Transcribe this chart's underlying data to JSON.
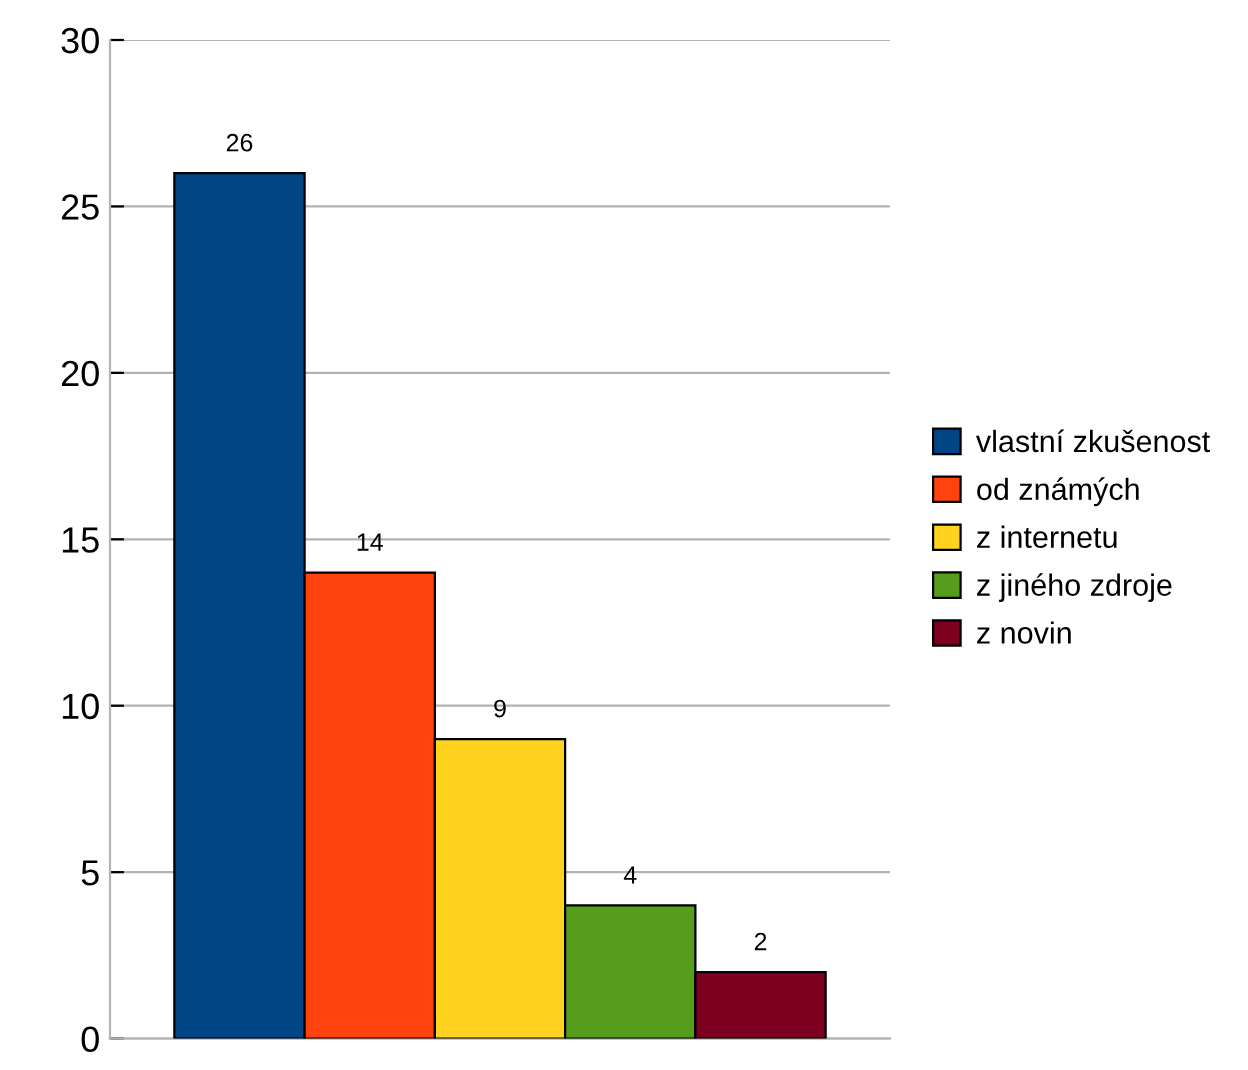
{
  "chart_data": {
    "type": "bar",
    "categories": [
      null
    ],
    "series": [
      {
        "name": "vlastní zkušenost",
        "color": "#004586",
        "values": [
          26
        ]
      },
      {
        "name": "od známých",
        "color": "#ff420e",
        "values": [
          14
        ]
      },
      {
        "name": "z internetu",
        "color": "#ffd320",
        "values": [
          9
        ]
      },
      {
        "name": "z jiného zdroje",
        "color": "#579d1c",
        "values": [
          4
        ]
      },
      {
        "name": "z novin",
        "color": "#7e0021",
        "values": [
          2
        ]
      }
    ],
    "ylim": [
      0,
      30
    ],
    "yticks": [
      0,
      5,
      10,
      15,
      20,
      25,
      30
    ],
    "grid": "y",
    "data_labels": true,
    "legend": "right"
  }
}
